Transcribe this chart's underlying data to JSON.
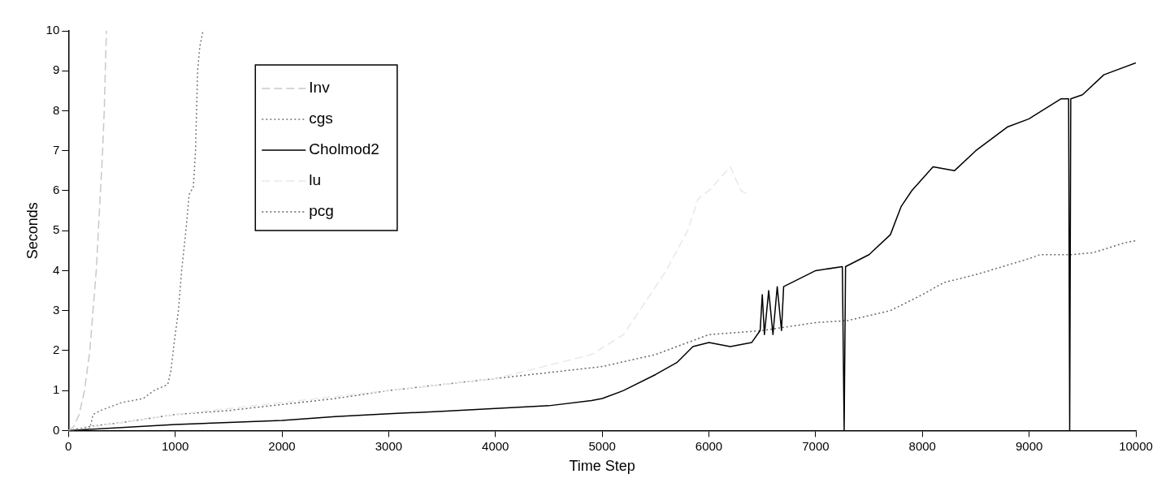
{
  "chart_data": {
    "type": "line",
    "xlabel": "Time Step",
    "ylabel": "Seconds",
    "xlim": [
      0,
      10000
    ],
    "ylim": [
      0,
      10
    ],
    "xticks": [
      0,
      1000,
      2000,
      3000,
      4000,
      5000,
      6000,
      7000,
      8000,
      9000,
      10000
    ],
    "yticks": [
      0,
      1,
      2,
      3,
      4,
      5,
      6,
      7,
      8,
      9,
      10
    ],
    "grid": false,
    "legend": "top left",
    "marker": "none",
    "series": [
      {
        "name": "Inv",
        "color": "#c8c8c8",
        "line_style": "dashed",
        "x": [
          0,
          50,
          100,
          150,
          200,
          230,
          260,
          280,
          300,
          320,
          335,
          345,
          355
        ],
        "values": [
          0,
          0.1,
          0.4,
          1,
          2,
          3,
          4,
          5,
          6,
          7,
          8,
          9,
          10
        ]
      },
      {
        "name": "cgs",
        "color": "#777777",
        "line_style": "dotted",
        "x": [
          0,
          200,
          230,
          300,
          500,
          700,
          800,
          930,
          960,
          990,
          1030,
          1060,
          1100,
          1130,
          1170,
          1190,
          1200,
          1210,
          1230,
          1260
        ],
        "values": [
          0,
          0.05,
          0.4,
          0.5,
          0.7,
          0.8,
          1.0,
          1.15,
          1.5,
          2.2,
          3,
          4,
          5,
          5.9,
          6.1,
          7,
          8,
          9,
          9.6,
          10
        ]
      },
      {
        "name": "Cholmod2",
        "color": "#000000",
        "line_style": "solid",
        "x": [
          0,
          1000,
          1500,
          2000,
          2500,
          3000,
          3500,
          4000,
          4500,
          4900,
          5000,
          5200,
          5500,
          5700,
          5850,
          6000,
          6200,
          6400,
          6480,
          6500,
          6520,
          6560,
          6600,
          6640,
          6680,
          6700,
          7000,
          7250,
          7267,
          7280,
          7500,
          7700,
          7800,
          7900,
          8100,
          8300,
          8500,
          8800,
          9000,
          9300,
          9370,
          9380,
          9390,
          9500,
          9700,
          10000
        ],
        "values": [
          0,
          0.15,
          0.2,
          0.25,
          0.35,
          0.42,
          0.48,
          0.55,
          0.62,
          0.75,
          0.8,
          1.0,
          1.4,
          1.7,
          2.1,
          2.2,
          2.1,
          2.2,
          2.5,
          3.4,
          2.4,
          3.5,
          2.4,
          3.6,
          2.5,
          3.6,
          4.0,
          4.1,
          0,
          4.1,
          4.4,
          4.9,
          5.6,
          6.0,
          6.6,
          6.5,
          7.0,
          7.6,
          7.8,
          8.3,
          8.3,
          0,
          8.3,
          8.4,
          8.9,
          9.2
        ]
      },
      {
        "name": "lu",
        "color": "#e8e8e8",
        "line_style": "dashed",
        "x": [
          0,
          1000,
          2000,
          3000,
          4000,
          4900,
          5200,
          5400,
          5600,
          5800,
          5900,
          6000,
          6100,
          6200,
          6300,
          6380
        ],
        "values": [
          0,
          0.4,
          0.7,
          1.0,
          1.3,
          1.9,
          2.4,
          3.2,
          4.0,
          5.0,
          5.8,
          6.0,
          6.3,
          6.6,
          6.0,
          5.9
        ]
      },
      {
        "name": "pcg",
        "color": "#666666",
        "line_style": "dotted",
        "x": [
          0,
          200,
          500,
          1000,
          1500,
          2000,
          2500,
          3000,
          3500,
          4000,
          4500,
          5000,
          5500,
          5800,
          6000,
          6500,
          7000,
          7300,
          7700,
          8000,
          8200,
          8500,
          9000,
          9100,
          9400,
          9600,
          9900,
          10000
        ],
        "values": [
          0,
          0.1,
          0.2,
          0.4,
          0.5,
          0.65,
          0.8,
          1.0,
          1.15,
          1.3,
          1.45,
          1.6,
          1.9,
          2.2,
          2.4,
          2.5,
          2.7,
          2.75,
          3.0,
          3.4,
          3.7,
          3.9,
          4.3,
          4.4,
          4.4,
          4.45,
          4.7,
          4.75
        ]
      }
    ]
  }
}
